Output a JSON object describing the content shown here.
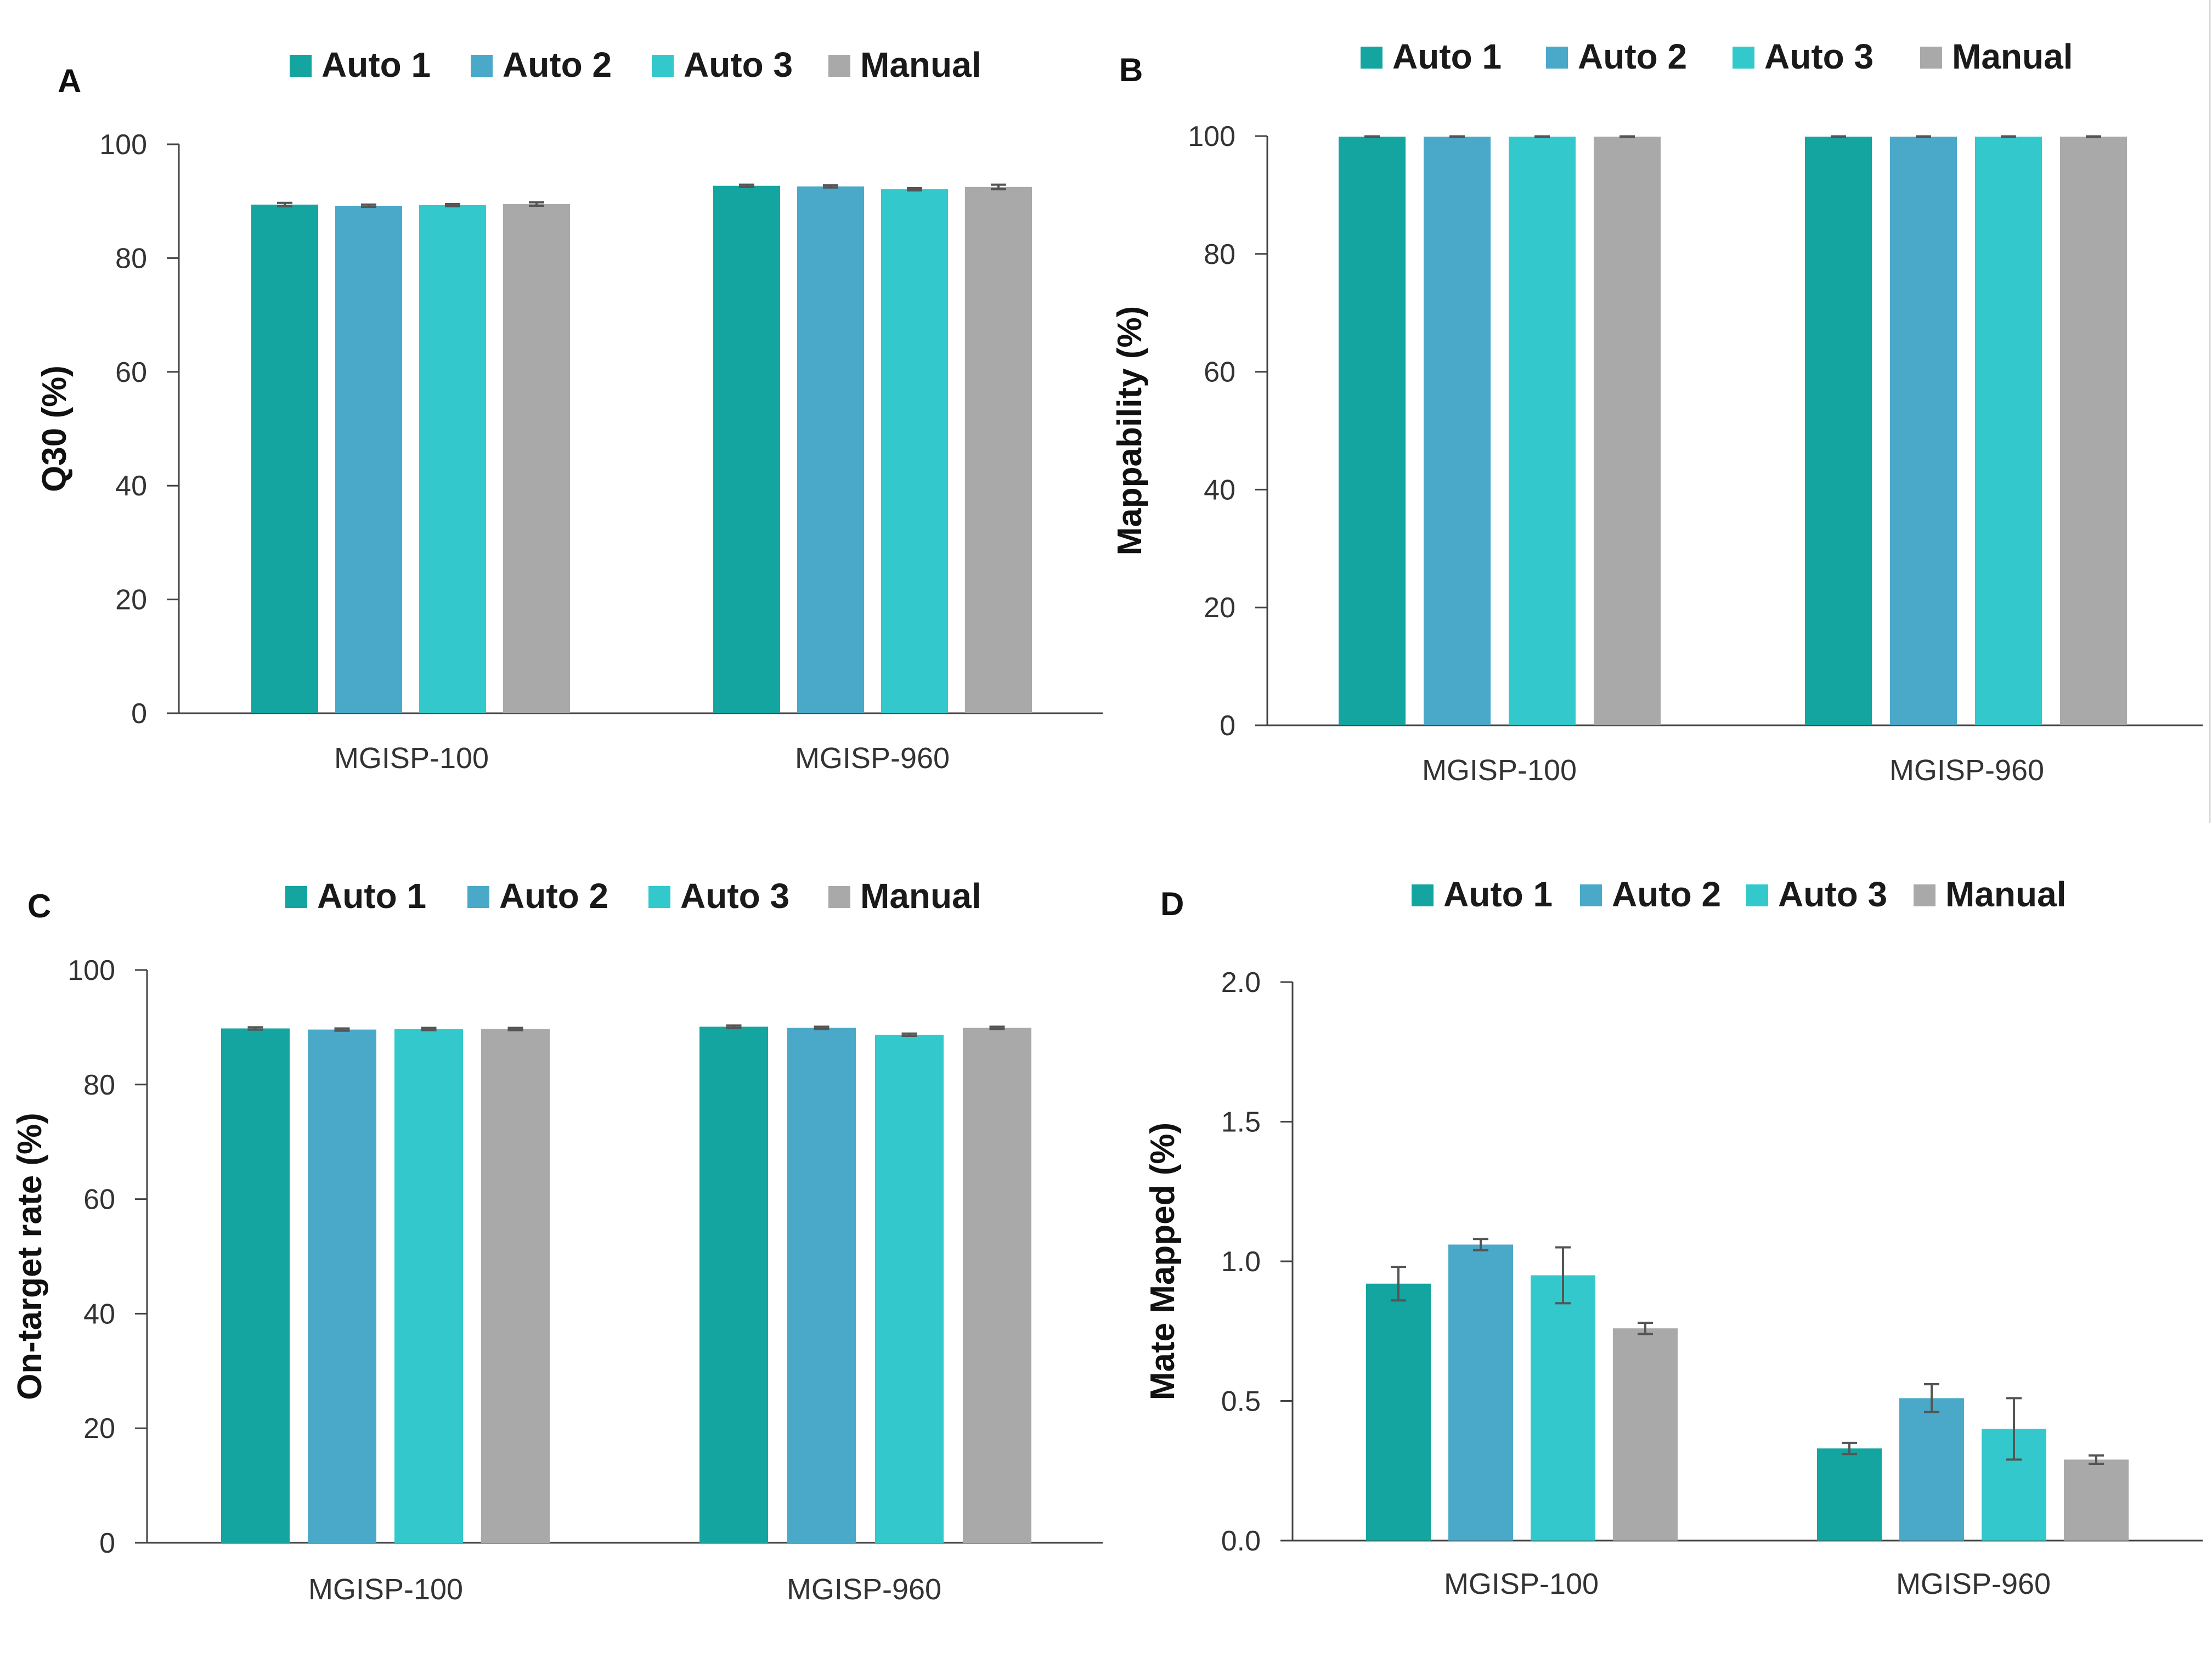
{
  "figure": {
    "series_colors": [
      "#14a5a0",
      "#4aa9c8",
      "#33c9cc",
      "#a9a9a9"
    ]
  },
  "chart_data": [
    {
      "panel": "A",
      "type": "bar",
      "categories": [
        "MGISP-100",
        "MGISP-960"
      ],
      "series": [
        {
          "name": "Auto 1",
          "values": [
            89.4,
            92.7
          ],
          "errors": [
            0.3,
            0.2
          ]
        },
        {
          "name": "Auto 2",
          "values": [
            89.2,
            92.6
          ],
          "errors": [
            0.2,
            0.2
          ]
        },
        {
          "name": "Auto 3",
          "values": [
            89.3,
            92.1
          ],
          "errors": [
            0.2,
            0.2
          ]
        },
        {
          "name": "Manual",
          "values": [
            89.5,
            92.5
          ],
          "errors": [
            0.3,
            0.4
          ]
        }
      ],
      "ylabel": "Q30 (%)",
      "ylim": [
        0,
        100
      ],
      "yticks": [
        "0",
        "20",
        "40",
        "60",
        "80",
        "100"
      ],
      "legend_position": "top"
    },
    {
      "panel": "B",
      "type": "bar",
      "categories": [
        "MGISP-100",
        "MGISP-960"
      ],
      "series": [
        {
          "name": "Auto 1",
          "values": [
            99.9,
            99.9
          ],
          "errors": [
            0.05,
            0.05
          ]
        },
        {
          "name": "Auto 2",
          "values": [
            99.9,
            99.9
          ],
          "errors": [
            0.05,
            0.05
          ]
        },
        {
          "name": "Auto 3",
          "values": [
            99.9,
            99.9
          ],
          "errors": [
            0.05,
            0.05
          ]
        },
        {
          "name": "Manual",
          "values": [
            99.9,
            99.9
          ],
          "errors": [
            0.05,
            0.05
          ]
        }
      ],
      "ylabel": "Mappability (%)",
      "ylim": [
        0,
        100
      ],
      "yticks": [
        "0",
        "20",
        "40",
        "60",
        "80",
        "100"
      ],
      "legend_position": "top"
    },
    {
      "panel": "C",
      "type": "bar",
      "categories": [
        "MGISP-100",
        "MGISP-960"
      ],
      "series": [
        {
          "name": "Auto 1",
          "values": [
            89.8,
            90.1
          ],
          "errors": [
            0.2,
            0.2
          ]
        },
        {
          "name": "Auto 2",
          "values": [
            89.6,
            89.9
          ],
          "errors": [
            0.2,
            0.2
          ]
        },
        {
          "name": "Auto 3",
          "values": [
            89.7,
            88.7
          ],
          "errors": [
            0.2,
            0.2
          ]
        },
        {
          "name": "Manual",
          "values": [
            89.7,
            89.9
          ],
          "errors": [
            0.2,
            0.2
          ]
        }
      ],
      "ylabel": "On-target rate (%)",
      "ylim": [
        0,
        100
      ],
      "yticks": [
        "0",
        "20",
        "40",
        "60",
        "80",
        "100"
      ],
      "legend_position": "top"
    },
    {
      "panel": "D",
      "type": "bar",
      "categories": [
        "MGISP-100",
        "MGISP-960"
      ],
      "series": [
        {
          "name": "Auto 1",
          "values": [
            0.92,
            0.33
          ],
          "errors": [
            0.06,
            0.02
          ]
        },
        {
          "name": "Auto 2",
          "values": [
            1.06,
            0.51
          ],
          "errors": [
            0.02,
            0.05
          ]
        },
        {
          "name": "Auto 3",
          "values": [
            0.95,
            0.4
          ],
          "errors": [
            0.1,
            0.11
          ]
        },
        {
          "name": "Manual",
          "values": [
            0.76,
            0.29
          ],
          "errors": [
            0.02,
            0.015
          ]
        }
      ],
      "ylabel": "Mate Mapped (%)",
      "ylim": [
        0,
        2.0
      ],
      "yticks": [
        "0.0",
        "0.5",
        "1.0",
        "1.5",
        "2.0"
      ],
      "legend_position": "top"
    }
  ]
}
